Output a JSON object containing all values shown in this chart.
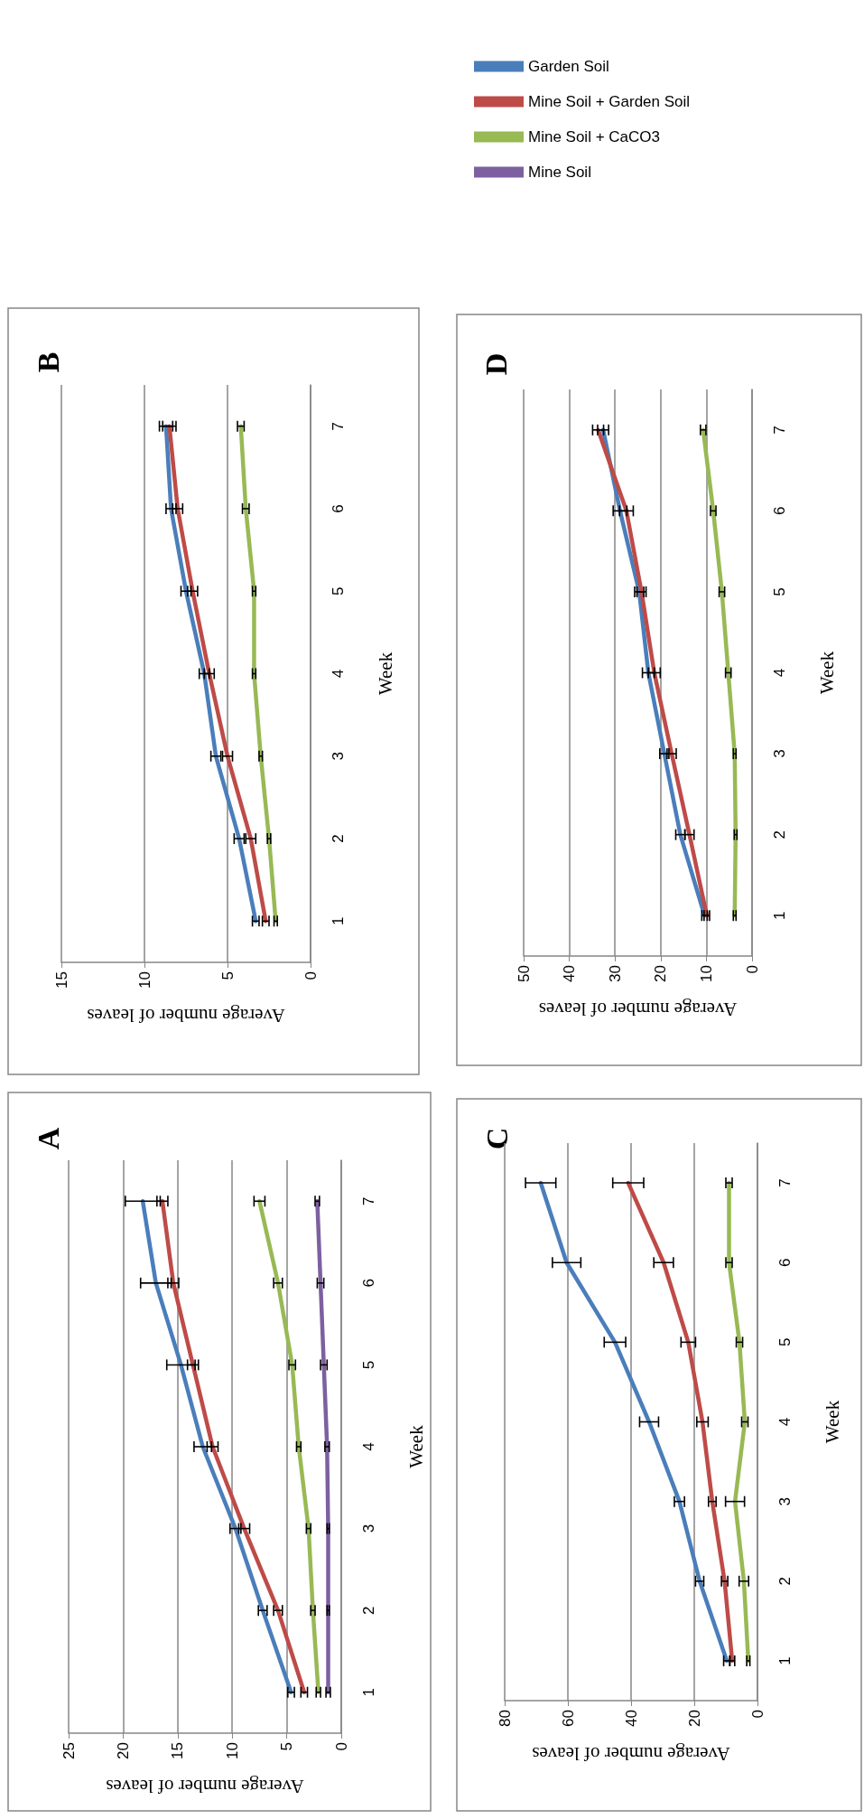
{
  "chart_data": [
    {
      "type": "line",
      "orientation": "horizontal",
      "title": "A",
      "ylabel": "Week",
      "xlabel": "Average number of leaves",
      "categories": [
        "7",
        "6",
        "5",
        "4",
        "3",
        "2",
        "1"
      ],
      "xlim": [
        25,
        0
      ],
      "xticks": [
        25,
        20,
        15,
        10,
        5,
        0
      ],
      "grid": "x",
      "legend": "top right",
      "series": [
        {
          "name": "Garden Soil",
          "color": "#4a7ebb",
          "values": [
            18.2,
            17.0,
            14.7,
            12.7,
            9.7,
            7.2,
            4.6
          ],
          "errors": [
            1.6,
            1.4,
            1.3,
            0.8,
            0.5,
            0.4,
            0.3
          ]
        },
        {
          "name": "Mine Soil + Garden Soil",
          "color": "#be4b48",
          "values": [
            16.4,
            15.4,
            13.6,
            11.8,
            8.9,
            5.8,
            3.4
          ],
          "errors": [
            0.5,
            0.5,
            0.5,
            0.5,
            0.5,
            0.4,
            0.3
          ]
        },
        {
          "name": "Mine Soil + CaCO3",
          "color": "#98b954",
          "values": [
            7.5,
            5.8,
            4.5,
            3.9,
            3.0,
            2.6,
            2.1
          ],
          "errors": [
            0.5,
            0.4,
            0.3,
            0.2,
            0.2,
            0.2,
            0.2
          ]
        },
        {
          "name": "Mine Soil",
          "color": "#7d60a0",
          "values": [
            2.2,
            1.9,
            1.6,
            1.3,
            1.2,
            1.2,
            1.2
          ],
          "errors": [
            0.2,
            0.3,
            0.3,
            0.2,
            0.1,
            0.1,
            0.2
          ]
        }
      ]
    },
    {
      "type": "line",
      "orientation": "horizontal",
      "title": "B",
      "ylabel": "Week",
      "xlabel": "Average number of leaves",
      "categories": [
        "7",
        "6",
        "5",
        "4",
        "3",
        "2",
        "1"
      ],
      "xlim": [
        15,
        0
      ],
      "xticks": [
        15,
        10,
        5,
        0
      ],
      "grid": "x",
      "series": [
        {
          "color": "#4a7ebb",
          "values": [
            8.7,
            8.4,
            7.5,
            6.4,
            5.7,
            4.3,
            3.3
          ],
          "errors": [
            0.4,
            0.3,
            0.3,
            0.3,
            0.3,
            0.3,
            0.2
          ]
        },
        {
          "color": "#be4b48",
          "values": [
            8.5,
            8.0,
            7.1,
            6.1,
            5.0,
            3.6,
            2.7
          ],
          "errors": [
            0.4,
            0.3,
            0.3,
            0.3,
            0.3,
            0.3,
            0.2
          ]
        },
        {
          "color": "#98b954",
          "values": [
            4.2,
            3.9,
            3.4,
            3.4,
            3.0,
            2.5,
            2.1
          ],
          "errors": [
            0.2,
            0.2,
            0.1,
            0.1,
            0.1,
            0.1,
            0.1
          ]
        }
      ]
    },
    {
      "type": "line",
      "orientation": "horizontal",
      "title": "C",
      "ylabel": "Week",
      "xlabel": "Average number of leaves",
      "categories": [
        "7",
        "6",
        "5",
        "4",
        "3",
        "2",
        "1"
      ],
      "xlim": [
        80,
        0
      ],
      "xticks": [
        80,
        60,
        40,
        20,
        0
      ],
      "grid": "x",
      "series": [
        {
          "color": "#4a7ebb",
          "values": [
            68.6,
            60.4,
            45.1,
            34.3,
            24.7,
            18.3,
            9.7
          ],
          "errors": [
            4.8,
            4.5,
            3.4,
            3.0,
            1.6,
            1.3,
            1.0
          ]
        },
        {
          "color": "#be4b48",
          "values": [
            40.9,
            29.7,
            21.9,
            17.4,
            14.3,
            10.4,
            8.0
          ],
          "errors": [
            4.9,
            3.1,
            2.3,
            1.8,
            1.2,
            1.0,
            0.8
          ]
        },
        {
          "color": "#98b954",
          "values": [
            9.0,
            9.0,
            5.7,
            4.0,
            7.1,
            4.3,
            2.9
          ],
          "errors": [
            1.0,
            1.0,
            1.0,
            1.0,
            3.0,
            1.5,
            0.5
          ]
        }
      ]
    },
    {
      "type": "line",
      "orientation": "horizontal",
      "title": "D",
      "ylabel": "Week",
      "xlabel": "Average number of leaves",
      "categories": [
        "7",
        "6",
        "5",
        "4",
        "3",
        "2",
        "1"
      ],
      "xlim": [
        50,
        0
      ],
      "xticks": [
        50,
        40,
        30,
        20,
        10,
        0
      ],
      "grid": "x",
      "series": [
        {
          "color": "#4a7ebb",
          "values": [
            32.6,
            28.9,
            24.7,
            22.7,
            19.2,
            15.7,
            10.4
          ],
          "errors": [
            1.2,
            1.5,
            1.0,
            1.3,
            1.0,
            1.0,
            0.6
          ]
        },
        {
          "color": "#be4b48",
          "values": [
            33.7,
            27.5,
            24.2,
            21.4,
            17.6,
            13.7,
            9.9
          ],
          "errors": [
            1.2,
            1.5,
            1.0,
            1.3,
            1.0,
            1.0,
            0.6
          ]
        },
        {
          "color": "#98b954",
          "values": [
            10.7,
            8.5,
            6.6,
            5.2,
            3.8,
            3.6,
            3.8
          ],
          "errors": [
            0.6,
            0.6,
            0.6,
            0.6,
            0.3,
            0.3,
            0.3
          ]
        }
      ]
    }
  ]
}
